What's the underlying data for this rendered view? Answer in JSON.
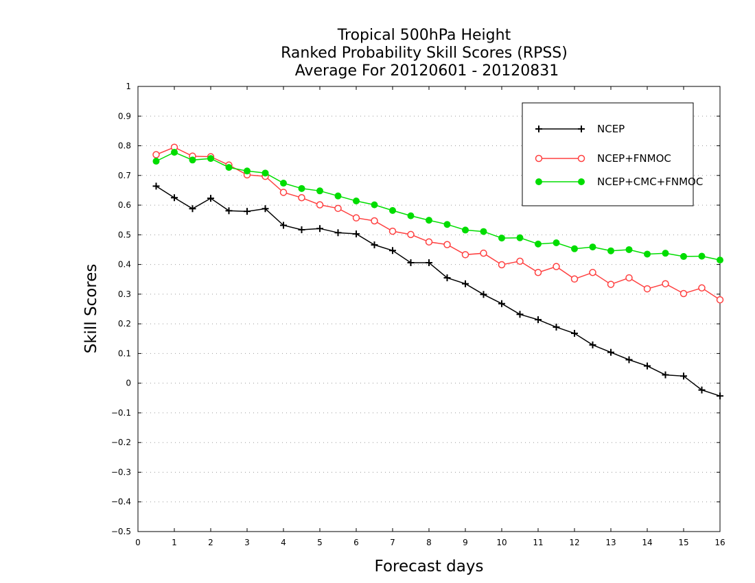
{
  "chart_data": {
    "type": "line",
    "title": [
      "Tropical 500hPa Height",
      "Ranked Probability Skill Scores (RPSS)",
      "Average For 20120601 - 20120831"
    ],
    "xlabel": "Forecast days",
    "ylabel": "Skill Scores",
    "xlim": [
      0,
      16
    ],
    "ylim": [
      -0.5,
      1
    ],
    "xticks": [
      "0",
      "1",
      "2",
      "3",
      "4",
      "5",
      "6",
      "7",
      "8",
      "9",
      "10",
      "11",
      "12",
      "13",
      "14",
      "15",
      "16"
    ],
    "yticks": [
      "−0.5",
      "−0.4",
      "−0.3",
      "−0.2",
      "−0.1",
      "0",
      "0.1",
      "0.2",
      "0.3",
      "0.4",
      "0.5",
      "0.6",
      "0.7",
      "0.8",
      "0.9",
      "1"
    ],
    "grid": true,
    "legend_position": "top-right",
    "x": [
      0.5,
      1,
      1.5,
      2,
      2.5,
      3,
      3.5,
      4,
      4.5,
      5,
      5.5,
      6,
      6.5,
      7,
      7.5,
      8,
      8.5,
      9,
      9.5,
      10,
      10.5,
      11,
      11.5,
      12,
      12.5,
      13,
      13.5,
      14,
      14.5,
      15,
      15.5,
      16
    ],
    "series": [
      {
        "name": "NCEP",
        "color": "#000000",
        "marker": "plus",
        "values": [
          0.664,
          0.625,
          0.588,
          0.623,
          0.581,
          0.579,
          0.588,
          0.532,
          0.517,
          0.521,
          0.507,
          0.503,
          0.466,
          0.447,
          0.406,
          0.406,
          0.355,
          0.335,
          0.299,
          0.268,
          0.232,
          0.214,
          0.189,
          0.168,
          0.129,
          0.104,
          0.079,
          0.058,
          0.028,
          0.024,
          -0.023,
          -0.043
        ]
      },
      {
        "name": "NCEP+FNMOC",
        "color": "#ff4040",
        "marker": "open-circle",
        "values": [
          0.77,
          0.795,
          0.765,
          0.763,
          0.735,
          0.702,
          0.697,
          0.643,
          0.625,
          0.601,
          0.589,
          0.557,
          0.547,
          0.512,
          0.501,
          0.476,
          0.467,
          0.433,
          0.438,
          0.399,
          0.411,
          0.373,
          0.393,
          0.351,
          0.373,
          0.333,
          0.355,
          0.318,
          0.335,
          0.302,
          0.321,
          0.281
        ]
      },
      {
        "name": "NCEP+CMC+FNMOC",
        "color": "#00dd00",
        "marker": "filled-circle",
        "values": [
          0.748,
          0.778,
          0.752,
          0.757,
          0.727,
          0.715,
          0.708,
          0.674,
          0.656,
          0.648,
          0.631,
          0.614,
          0.601,
          0.582,
          0.564,
          0.549,
          0.535,
          0.516,
          0.511,
          0.489,
          0.49,
          0.469,
          0.473,
          0.453,
          0.459,
          0.446,
          0.45,
          0.435,
          0.438,
          0.427,
          0.428,
          0.415
        ]
      }
    ]
  }
}
